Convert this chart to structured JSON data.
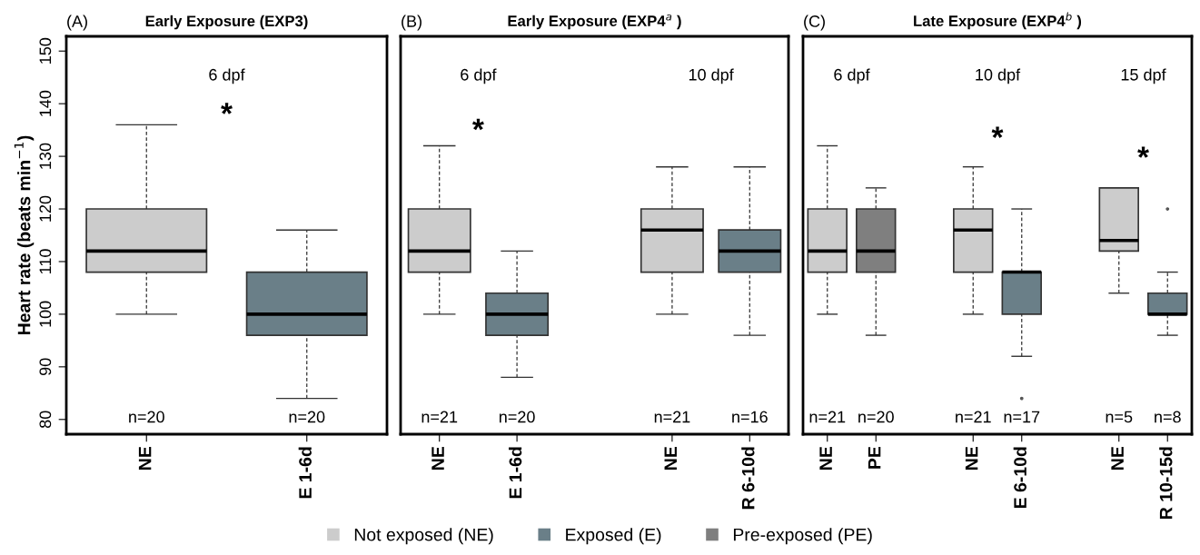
{
  "chart_data": [
    {
      "type": "box",
      "title": "Early Exposure (EXP3)",
      "ylabel": "Heart rate (beats min$^{−1}$)",
      "categories": [
        "NE",
        "E 1-6d"
      ],
      "series": [
        {
          "name": "Not exposed (NE)",
          "color": "#cccccc",
          "boxes": [
            {
              "low": 100,
              "q1": 108,
              "median": 112,
              "q3": 120,
              "high": 136
            },
            null
          ]
        },
        {
          "name": "Exposed (E)",
          "color": "#6a7f88",
          "boxes": [
            null,
            {
              "low": 84,
              "q1": 96,
              "median": 100,
              "q3": 108,
              "high": 116
            }
          ]
        }
      ],
      "ylim": [
        77.2,
        152.8
      ],
      "yticks": [
        80,
        90,
        100,
        110,
        120,
        130,
        140,
        150
      ],
      "legend": "bottom",
      "annotations": [
        "(A)",
        "6 dpf",
        "*",
        "n=20",
        "n=20"
      ]
    },
    {
      "type": "box",
      "title": "Early Exposure (EXP4$^{a}$ )",
      "categories": [
        "NE",
        "E 1-6d",
        null,
        "NE",
        "R 6-10d"
      ],
      "series": [
        {
          "name": "Not exposed (NE)",
          "color": "#cccccc",
          "boxes": [
            {
              "low": 100,
              "q1": 108,
              "median": 112,
              "q3": 120,
              "high": 132
            },
            null,
            null,
            {
              "low": 100,
              "q1": 108,
              "median": 116,
              "q3": 120,
              "high": 128
            },
            null
          ]
        },
        {
          "name": "Exposed (E)",
          "color": "#6a7f88",
          "boxes": [
            null,
            {
              "low": 88,
              "q1": 96,
              "median": 100,
              "q3": 104,
              "high": 112
            },
            null,
            null,
            {
              "low": 96,
              "q1": 108,
              "median": 112,
              "q3": 116,
              "high": 128
            }
          ]
        }
      ],
      "ylim": [
        77.2,
        152.8
      ],
      "yticks": [
        80,
        90,
        100,
        110,
        120,
        130,
        140,
        150
      ],
      "tick_labels": "x",
      "legend": "bottom",
      "annotations": [
        "(B)",
        "6 dpf",
        "10 dpf",
        "*",
        "n=21",
        "n=20",
        "n=21",
        "n=16"
      ]
    },
    {
      "type": "box",
      "title": "Late Exposure (EXP4$^{b}$ )",
      "categories": [
        "NE",
        "PE",
        null,
        "NE",
        "E 6-10d",
        null,
        "NE",
        "R 10-15d"
      ],
      "series": [
        {
          "name": "Not exposed (NE)",
          "color": "#cccccc",
          "boxes": [
            {
              "low": 100,
              "q1": 108,
              "median": 112,
              "q3": 120,
              "high": 132
            },
            null,
            null,
            {
              "low": 100,
              "q1": 108,
              "median": 116,
              "q3": 120,
              "high": 128
            },
            null,
            null,
            {
              "low": 104,
              "q1": 112,
              "median": 114,
              "q3": 124,
              "high": 124
            },
            null
          ]
        },
        {
          "name": "Exposed (E)",
          "color": "#6a7f88",
          "boxes": [
            null,
            null,
            null,
            null,
            {
              "low": 92,
              "q1": 100,
              "median": 108,
              "q3": 108,
              "high": 120,
              "outliers": [
                84
              ]
            },
            null,
            null,
            {
              "low": 96,
              "q1": 100,
              "median": 100,
              "q3": 104,
              "high": 108,
              "outliers": [
                120
              ]
            }
          ]
        },
        {
          "name": "Pre-exposed (PE)",
          "color": "#7f7f7f",
          "boxes": [
            null,
            {
              "low": 96,
              "q1": 108,
              "median": 112,
              "q3": 120,
              "high": 124
            },
            null,
            null,
            null,
            null,
            null,
            null
          ]
        }
      ],
      "ylim": [
        77.2,
        152.8
      ],
      "yticks": [
        80,
        90,
        100,
        110,
        120,
        130,
        140,
        150
      ],
      "tick_labels": "x",
      "legend": "bottom",
      "annotations": [
        "(C)",
        "6 dpf",
        "10 dpf",
        "15 dpf",
        "*",
        "*",
        "n=21",
        "n=20",
        "n=21",
        "n=17",
        "n=5",
        "n=8"
      ]
    }
  ]
}
